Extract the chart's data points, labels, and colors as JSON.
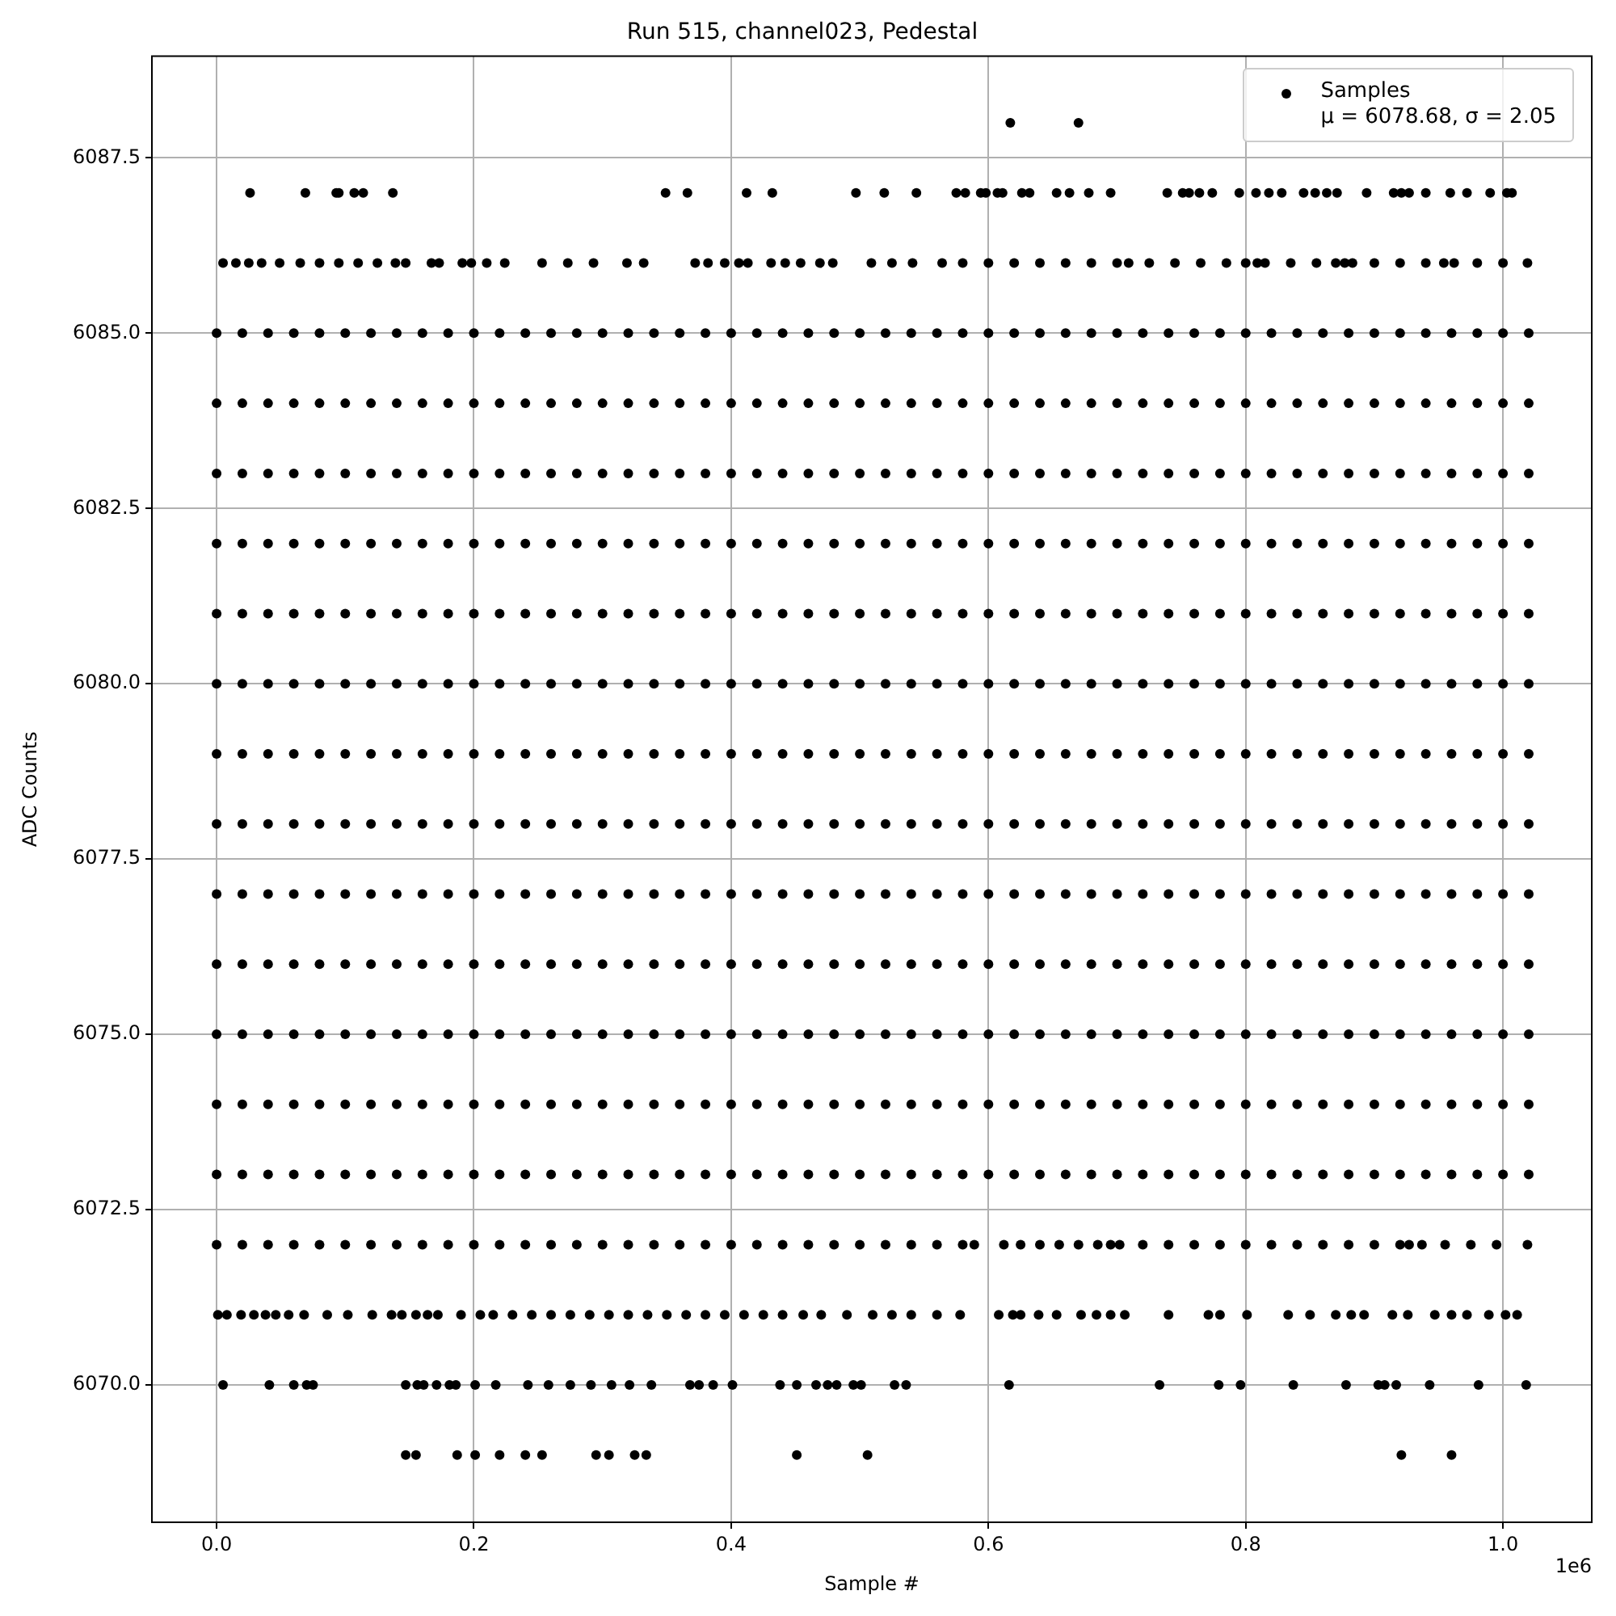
{
  "chart_data": {
    "type": "scatter",
    "title": "Run 515, channel023, Pedestal",
    "xlabel": "Sample #",
    "ylabel": "ADC Counts",
    "xlim": [
      -0.0503,
      1.069
    ],
    "xticks": [
      {
        "value": 0,
        "label": "0.0"
      },
      0.2,
      0.4,
      0.6,
      0.8,
      {
        "value": 1,
        "label": "1.0"
      }
    ],
    "ylim": [
      6068.04,
      6088.95
    ],
    "yticks": [
      {
        "value": 6070,
        "label": "6070.0"
      },
      6072.5,
      {
        "value": 6075,
        "label": "6075.0"
      },
      6077.5,
      {
        "value": 6080,
        "label": "6080.0"
      },
      6082.5,
      {
        "value": 6085,
        "label": "6085.0"
      },
      6087.5
    ],
    "grid": true,
    "legend": "top right",
    "marker": "circle",
    "annotations": [
      "1e6"
    ],
    "x": [
      0,
      0.02,
      0.04,
      0.06,
      0.08,
      0.1,
      0.12,
      0.14,
      0.16,
      0.18,
      0.2,
      0.22,
      0.24,
      0.26,
      0.28,
      0.3,
      0.32,
      0.34,
      0.36,
      0.38,
      0.4,
      0.42,
      0.44,
      0.46,
      0.48,
      0.5,
      0.52,
      0.54,
      0.56,
      0.58,
      0.6,
      0.62,
      0.64,
      0.66,
      0.68,
      0.7,
      0.72,
      0.74,
      0.76,
      0.78,
      0.8,
      0.82,
      0.84,
      0.86,
      0.88,
      0.9,
      0.92,
      0.94,
      0.96,
      0.98,
      1,
      1.02
    ],
    "series": [
      {
        "name": "Samples\nμ = 6078.68, σ = 2.05",
        "color": "#000000",
        "values": [
          6085,
          6085,
          6085,
          6085,
          6085,
          6085,
          6085,
          6085,
          6085,
          6085,
          6085,
          6085,
          6085,
          6085,
          6085,
          6085,
          6085,
          6085,
          6085,
          6085,
          6085,
          6085,
          6085,
          6085,
          6085,
          6085,
          6085,
          6085,
          6085,
          6085,
          6085,
          6085,
          6085,
          6085,
          6085,
          6085,
          6085,
          6085,
          6085,
          6085,
          6085,
          6085,
          6085,
          6085,
          6085,
          6085,
          6085,
          6085,
          6085,
          6085,
          6085,
          6085
        ]
      },
      {
        "color": "#000000",
        "values": [
          6084,
          6084,
          6084,
          6084,
          6084,
          6084,
          6084,
          6084,
          6084,
          6084,
          6084,
          6084,
          6084,
          6084,
          6084,
          6084,
          6084,
          6084,
          6084,
          6084,
          6084,
          6084,
          6084,
          6084,
          6084,
          6084,
          6084,
          6084,
          6084,
          6084,
          6084,
          6084,
          6084,
          6084,
          6084,
          6084,
          6084,
          6084,
          6084,
          6084,
          6084,
          6084,
          6084,
          6084,
          6084,
          6084,
          6084,
          6084,
          6084,
          6084,
          6084,
          6084
        ]
      },
      {
        "color": "#000000",
        "values": [
          6083,
          6083,
          6083,
          6083,
          6083,
          6083,
          6083,
          6083,
          6083,
          6083,
          6083,
          6083,
          6083,
          6083,
          6083,
          6083,
          6083,
          6083,
          6083,
          6083,
          6083,
          6083,
          6083,
          6083,
          6083,
          6083,
          6083,
          6083,
          6083,
          6083,
          6083,
          6083,
          6083,
          6083,
          6083,
          6083,
          6083,
          6083,
          6083,
          6083,
          6083,
          6083,
          6083,
          6083,
          6083,
          6083,
          6083,
          6083,
          6083,
          6083,
          6083,
          6083
        ]
      },
      {
        "color": "#000000",
        "values": [
          6082,
          6082,
          6082,
          6082,
          6082,
          6082,
          6082,
          6082,
          6082,
          6082,
          6082,
          6082,
          6082,
          6082,
          6082,
          6082,
          6082,
          6082,
          6082,
          6082,
          6082,
          6082,
          6082,
          6082,
          6082,
          6082,
          6082,
          6082,
          6082,
          6082,
          6082,
          6082,
          6082,
          6082,
          6082,
          6082,
          6082,
          6082,
          6082,
          6082,
          6082,
          6082,
          6082,
          6082,
          6082,
          6082,
          6082,
          6082,
          6082,
          6082,
          6082,
          6082
        ]
      },
      {
        "color": "#000000",
        "values": [
          6081,
          6081,
          6081,
          6081,
          6081,
          6081,
          6081,
          6081,
          6081,
          6081,
          6081,
          6081,
          6081,
          6081,
          6081,
          6081,
          6081,
          6081,
          6081,
          6081,
          6081,
          6081,
          6081,
          6081,
          6081,
          6081,
          6081,
          6081,
          6081,
          6081,
          6081,
          6081,
          6081,
          6081,
          6081,
          6081,
          6081,
          6081,
          6081,
          6081,
          6081,
          6081,
          6081,
          6081,
          6081,
          6081,
          6081,
          6081,
          6081,
          6081,
          6081,
          6081
        ]
      },
      {
        "color": "#000000",
        "values": [
          6080,
          6080,
          6080,
          6080,
          6080,
          6080,
          6080,
          6080,
          6080,
          6080,
          6080,
          6080,
          6080,
          6080,
          6080,
          6080,
          6080,
          6080,
          6080,
          6080,
          6080,
          6080,
          6080,
          6080,
          6080,
          6080,
          6080,
          6080,
          6080,
          6080,
          6080,
          6080,
          6080,
          6080,
          6080,
          6080,
          6080,
          6080,
          6080,
          6080,
          6080,
          6080,
          6080,
          6080,
          6080,
          6080,
          6080,
          6080,
          6080,
          6080,
          6080,
          6080
        ]
      },
      {
        "color": "#000000",
        "values": [
          6079,
          6079,
          6079,
          6079,
          6079,
          6079,
          6079,
          6079,
          6079,
          6079,
          6079,
          6079,
          6079,
          6079,
          6079,
          6079,
          6079,
          6079,
          6079,
          6079,
          6079,
          6079,
          6079,
          6079,
          6079,
          6079,
          6079,
          6079,
          6079,
          6079,
          6079,
          6079,
          6079,
          6079,
          6079,
          6079,
          6079,
          6079,
          6079,
          6079,
          6079,
          6079,
          6079,
          6079,
          6079,
          6079,
          6079,
          6079,
          6079,
          6079,
          6079,
          6079
        ]
      },
      {
        "color": "#000000",
        "values": [
          6078,
          6078,
          6078,
          6078,
          6078,
          6078,
          6078,
          6078,
          6078,
          6078,
          6078,
          6078,
          6078,
          6078,
          6078,
          6078,
          6078,
          6078,
          6078,
          6078,
          6078,
          6078,
          6078,
          6078,
          6078,
          6078,
          6078,
          6078,
          6078,
          6078,
          6078,
          6078,
          6078,
          6078,
          6078,
          6078,
          6078,
          6078,
          6078,
          6078,
          6078,
          6078,
          6078,
          6078,
          6078,
          6078,
          6078,
          6078,
          6078,
          6078,
          6078,
          6078
        ]
      },
      {
        "color": "#000000",
        "values": [
          6077,
          6077,
          6077,
          6077,
          6077,
          6077,
          6077,
          6077,
          6077,
          6077,
          6077,
          6077,
          6077,
          6077,
          6077,
          6077,
          6077,
          6077,
          6077,
          6077,
          6077,
          6077,
          6077,
          6077,
          6077,
          6077,
          6077,
          6077,
          6077,
          6077,
          6077,
          6077,
          6077,
          6077,
          6077,
          6077,
          6077,
          6077,
          6077,
          6077,
          6077,
          6077,
          6077,
          6077,
          6077,
          6077,
          6077,
          6077,
          6077,
          6077,
          6077,
          6077
        ]
      },
      {
        "color": "#000000",
        "values": [
          6076,
          6076,
          6076,
          6076,
          6076,
          6076,
          6076,
          6076,
          6076,
          6076,
          6076,
          6076,
          6076,
          6076,
          6076,
          6076,
          6076,
          6076,
          6076,
          6076,
          6076,
          6076,
          6076,
          6076,
          6076,
          6076,
          6076,
          6076,
          6076,
          6076,
          6076,
          6076,
          6076,
          6076,
          6076,
          6076,
          6076,
          6076,
          6076,
          6076,
          6076,
          6076,
          6076,
          6076,
          6076,
          6076,
          6076,
          6076,
          6076,
          6076,
          6076,
          6076
        ]
      },
      {
        "color": "#000000",
        "values": [
          6075,
          6075,
          6075,
          6075,
          6075,
          6075,
          6075,
          6075,
          6075,
          6075,
          6075,
          6075,
          6075,
          6075,
          6075,
          6075,
          6075,
          6075,
          6075,
          6075,
          6075,
          6075,
          6075,
          6075,
          6075,
          6075,
          6075,
          6075,
          6075,
          6075,
          6075,
          6075,
          6075,
          6075,
          6075,
          6075,
          6075,
          6075,
          6075,
          6075,
          6075,
          6075,
          6075,
          6075,
          6075,
          6075,
          6075,
          6075,
          6075,
          6075,
          6075,
          6075
        ]
      },
      {
        "color": "#000000",
        "values": [
          6074,
          6074,
          6074,
          6074,
          6074,
          6074,
          6074,
          6074,
          6074,
          6074,
          6074,
          6074,
          6074,
          6074,
          6074,
          6074,
          6074,
          6074,
          6074,
          6074,
          6074,
          6074,
          6074,
          6074,
          6074,
          6074,
          6074,
          6074,
          6074,
          6074,
          6074,
          6074,
          6074,
          6074,
          6074,
          6074,
          6074,
          6074,
          6074,
          6074,
          6074,
          6074,
          6074,
          6074,
          6074,
          6074,
          6074,
          6074,
          6074,
          6074,
          6074,
          6074
        ]
      },
      {
        "color": "#000000",
        "values": [
          6073,
          6073,
          6073,
          6073,
          6073,
          6073,
          6073,
          6073,
          6073,
          6073,
          6073,
          6073,
          6073,
          6073,
          6073,
          6073,
          6073,
          6073,
          6073,
          6073,
          6073,
          6073,
          6073,
          6073,
          6073,
          6073,
          6073,
          6073,
          6073,
          6073,
          6073,
          6073,
          6073,
          6073,
          6073,
          6073,
          6073,
          6073,
          6073,
          6073,
          6073,
          6073,
          6073,
          6073,
          6073,
          6073,
          6073,
          6073,
          6073,
          6073,
          6073,
          6073
        ]
      },
      {
        "color": "#000000",
        "x": [
          0.617,
          0.67
        ],
        "values": [
          6088,
          6088
        ]
      },
      {
        "color": "#000000",
        "x": [
          0.026,
          0.069,
          0.093,
          0.095,
          0.107,
          0.114,
          0.137,
          0.349,
          0.366,
          0.412,
          0.432,
          0.497,
          0.519,
          0.544,
          0.575,
          0.582,
          0.594,
          0.598,
          0.607,
          0.611,
          0.626,
          0.632,
          0.653,
          0.663,
          0.678,
          0.695,
          0.739,
          0.751,
          0.756,
          0.764,
          0.774,
          0.795,
          0.808,
          0.818,
          0.828,
          0.845,
          0.854,
          0.863,
          0.871,
          0.894,
          0.915,
          0.921,
          0.927,
          0.94,
          0.959,
          0.972,
          0.99,
          1.003,
          1.007
        ],
        "values": [
          6087,
          6087,
          6087,
          6087,
          6087,
          6087,
          6087,
          6087,
          6087,
          6087,
          6087,
          6087,
          6087,
          6087,
          6087,
          6087,
          6087,
          6087,
          6087,
          6087,
          6087,
          6087,
          6087,
          6087,
          6087,
          6087,
          6087,
          6087,
          6087,
          6087,
          6087,
          6087,
          6087,
          6087,
          6087,
          6087,
          6087,
          6087,
          6087,
          6087,
          6087,
          6087,
          6087,
          6087,
          6087,
          6087,
          6087,
          6087,
          6087
        ]
      },
      {
        "color": "#000000",
        "x": [
          0.005,
          0.015,
          0.025,
          0.035,
          0.049,
          0.065,
          0.08,
          0.095,
          0.11,
          0.125,
          0.139,
          0.147,
          0.167,
          0.173,
          0.191,
          0.198,
          0.21,
          0.224,
          0.253,
          0.273,
          0.293,
          0.319,
          0.332,
          0.372,
          0.382,
          0.395,
          0.406,
          0.413,
          0.431,
          0.442,
          0.454,
          0.469,
          0.479,
          0.509,
          0.525,
          0.541,
          0.564,
          0.58,
          0.6,
          0.62,
          0.64,
          0.66,
          0.68,
          0.7,
          0.709,
          0.725,
          0.745,
          0.765,
          0.785,
          0.8,
          0.809,
          0.815,
          0.835,
          0.855,
          0.87,
          0.877,
          0.883,
          0.9,
          0.92,
          0.94,
          0.954,
          0.962,
          0.98,
          1,
          1.019
        ],
        "values": [
          6086,
          6086,
          6086,
          6086,
          6086,
          6086,
          6086,
          6086,
          6086,
          6086,
          6086,
          6086,
          6086,
          6086,
          6086,
          6086,
          6086,
          6086,
          6086,
          6086,
          6086,
          6086,
          6086,
          6086,
          6086,
          6086,
          6086,
          6086,
          6086,
          6086,
          6086,
          6086,
          6086,
          6086,
          6086,
          6086,
          6086,
          6086,
          6086,
          6086,
          6086,
          6086,
          6086,
          6086,
          6086,
          6086,
          6086,
          6086,
          6086,
          6086,
          6086,
          6086,
          6086,
          6086,
          6086,
          6086,
          6086,
          6086,
          6086,
          6086,
          6086,
          6086,
          6086,
          6086,
          6086
        ]
      },
      {
        "color": "#000000",
        "x": [
          0,
          0.02,
          0.04,
          0.06,
          0.08,
          0.1,
          0.12,
          0.14,
          0.16,
          0.18,
          0.2,
          0.22,
          0.24,
          0.26,
          0.28,
          0.3,
          0.32,
          0.34,
          0.36,
          0.38,
          0.4,
          0.42,
          0.44,
          0.46,
          0.48,
          0.5,
          0.52,
          0.54,
          0.56,
          0.58,
          0.589,
          0.612,
          0.625,
          0.64,
          0.655,
          0.67,
          0.685,
          0.695,
          0.702,
          0.72,
          0.74,
          0.76,
          0.78,
          0.8,
          0.82,
          0.84,
          0.86,
          0.88,
          0.9,
          0.92,
          0.927,
          0.937,
          0.955,
          0.975,
          0.995,
          1.019
        ],
        "values": [
          6072,
          6072,
          6072,
          6072,
          6072,
          6072,
          6072,
          6072,
          6072,
          6072,
          6072,
          6072,
          6072,
          6072,
          6072,
          6072,
          6072,
          6072,
          6072,
          6072,
          6072,
          6072,
          6072,
          6072,
          6072,
          6072,
          6072,
          6072,
          6072,
          6072,
          6072,
          6072,
          6072,
          6072,
          6072,
          6072,
          6072,
          6072,
          6072,
          6072,
          6072,
          6072,
          6072,
          6072,
          6072,
          6072,
          6072,
          6072,
          6072,
          6072,
          6072,
          6072,
          6072,
          6072,
          6072,
          6072
        ]
      },
      {
        "color": "#000000",
        "x": [
          0.001,
          0.008,
          0.019,
          0.029,
          0.038,
          0.046,
          0.056,
          0.068,
          0.086,
          0.102,
          0.121,
          0.136,
          0.144,
          0.155,
          0.164,
          0.172,
          0.19,
          0.205,
          0.215,
          0.23,
          0.245,
          0.26,
          0.275,
          0.29,
          0.305,
          0.32,
          0.335,
          0.35,
          0.365,
          0.38,
          0.395,
          0.41,
          0.425,
          0.44,
          0.456,
          0.47,
          0.49,
          0.51,
          0.525,
          0.54,
          0.56,
          0.578,
          0.608,
          0.619,
          0.625,
          0.639,
          0.653,
          0.672,
          0.684,
          0.695,
          0.706,
          0.74,
          0.771,
          0.78,
          0.801,
          0.833,
          0.85,
          0.87,
          0.882,
          0.892,
          0.914,
          0.926,
          0.947,
          0.96,
          0.972,
          0.989,
          1.002,
          1.011
        ],
        "values": [
          6071,
          6071,
          6071,
          6071,
          6071,
          6071,
          6071,
          6071,
          6071,
          6071,
          6071,
          6071,
          6071,
          6071,
          6071,
          6071,
          6071,
          6071,
          6071,
          6071,
          6071,
          6071,
          6071,
          6071,
          6071,
          6071,
          6071,
          6071,
          6071,
          6071,
          6071,
          6071,
          6071,
          6071,
          6071,
          6071,
          6071,
          6071,
          6071,
          6071,
          6071,
          6071,
          6071,
          6071,
          6071,
          6071,
          6071,
          6071,
          6071,
          6071,
          6071,
          6071,
          6071,
          6071,
          6071,
          6071,
          6071,
          6071,
          6071,
          6071,
          6071,
          6071,
          6071,
          6071,
          6071,
          6071,
          6071,
          6071
        ]
      },
      {
        "color": "#000000",
        "x": [
          0.005,
          0.041,
          0.06,
          0.07,
          0.075,
          0.147,
          0.156,
          0.161,
          0.171,
          0.181,
          0.186,
          0.201,
          0.217,
          0.242,
          0.258,
          0.275,
          0.291,
          0.307,
          0.321,
          0.338,
          0.368,
          0.375,
          0.386,
          0.401,
          0.438,
          0.451,
          0.466,
          0.475,
          0.482,
          0.495,
          0.501,
          0.527,
          0.536,
          0.616,
          0.733,
          0.779,
          0.796,
          0.837,
          0.878,
          0.903,
          0.908,
          0.917,
          0.943,
          0.981,
          1.018
        ],
        "values": [
          6070,
          6070,
          6070,
          6070,
          6070,
          6070,
          6070,
          6070,
          6070,
          6070,
          6070,
          6070,
          6070,
          6070,
          6070,
          6070,
          6070,
          6070,
          6070,
          6070,
          6070,
          6070,
          6070,
          6070,
          6070,
          6070,
          6070,
          6070,
          6070,
          6070,
          6070,
          6070,
          6070,
          6070,
          6070,
          6070,
          6070,
          6070,
          6070,
          6070,
          6070,
          6070,
          6070,
          6070,
          6070
        ]
      },
      {
        "color": "#000000",
        "x": [
          0.147,
          0.155,
          0.187,
          0.201,
          0.22,
          0.24,
          0.253,
          0.295,
          0.305,
          0.325,
          0.334,
          0.451,
          0.506,
          0.921,
          0.96
        ],
        "values": [
          6069,
          6069,
          6069,
          6069,
          6069,
          6069,
          6069,
          6069,
          6069,
          6069,
          6069,
          6069,
          6069,
          6069,
          6069
        ]
      }
    ]
  }
}
